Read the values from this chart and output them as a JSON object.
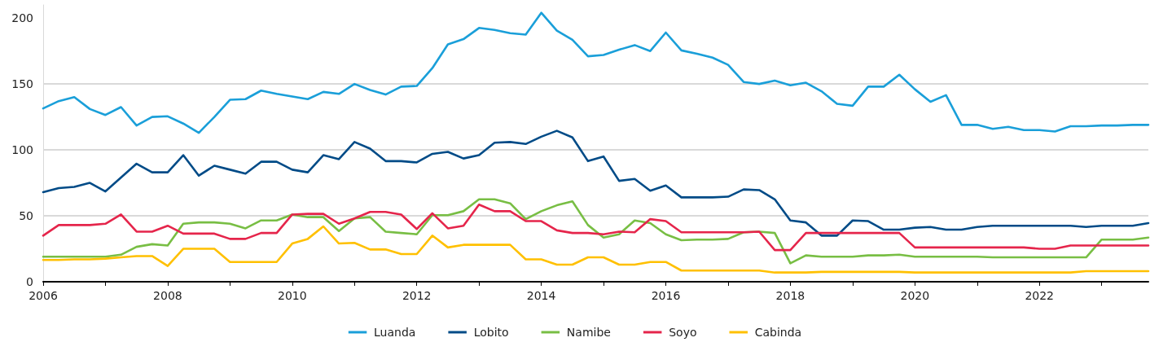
{
  "chart_data": {
    "type": "line",
    "x": [
      2006,
      2006.25,
      2006.5,
      2006.75,
      2007,
      2007.25,
      2007.5,
      2007.75,
      2008,
      2008.25,
      2008.5,
      2008.75,
      2009,
      2009.25,
      2009.5,
      2009.75,
      2010,
      2010.25,
      2010.5,
      2010.75,
      2011,
      2011.25,
      2011.5,
      2011.75,
      2012,
      2012.25,
      2012.5,
      2012.75,
      2013,
      2013.25,
      2013.5,
      2013.75,
      2014,
      2014.25,
      2014.5,
      2014.75,
      2015,
      2015.25,
      2015.5,
      2015.75,
      2016,
      2016.25,
      2016.5,
      2016.75,
      2017,
      2017.25,
      2017.5,
      2017.75,
      2018,
      2018.25,
      2018.5,
      2018.75,
      2019,
      2019.25,
      2019.5,
      2019.75,
      2020,
      2020.25,
      2020.5,
      2020.75,
      2021,
      2021.25,
      2021.5,
      2021.75,
      2022,
      2022.25,
      2022.5,
      2022.75,
      2023,
      2023.25,
      2023.5,
      2023.75
    ],
    "series": [
      {
        "name": "Luanda",
        "color": "#1a9fd9",
        "values": [
          131.5,
          137,
          140,
          131,
          126.5,
          132.5,
          118.5,
          125,
          125.5,
          120,
          113,
          125,
          138,
          138.5,
          145,
          142.5,
          140.5,
          138.5,
          144,
          142.5,
          150,
          145.5,
          142,
          148,
          148.5,
          162,
          180,
          184,
          192.5,
          191,
          188.5,
          187.5,
          204,
          190.5,
          183.5,
          171,
          172,
          176,
          179.5,
          175,
          189,
          175.5,
          173,
          170,
          164.5,
          151.5,
          150,
          152.5,
          149,
          151,
          144.5,
          135,
          133.5,
          148,
          148,
          157,
          146,
          136.5,
          141.5,
          119,
          119,
          116,
          117.5,
          115,
          115,
          114,
          118,
          118,
          118.5,
          118.5,
          119,
          119
        ]
      },
      {
        "name": "Lobito",
        "color": "#004b87",
        "values": [
          68,
          71,
          72,
          75,
          68.5,
          79,
          89.5,
          83,
          83,
          96,
          80.5,
          88,
          85,
          82,
          91,
          91,
          85,
          83,
          96,
          93,
          106,
          101,
          91.5,
          91.5,
          90.5,
          97,
          98.5,
          93.5,
          96,
          105.5,
          106,
          104.5,
          110,
          114.5,
          109.5,
          91.5,
          95,
          76.5,
          78,
          69,
          73,
          64,
          64,
          64,
          64.5,
          70,
          69.5,
          62.5,
          46.5,
          45,
          35,
          35,
          46.5,
          46,
          39.5,
          39.5,
          41,
          41.5,
          39.5,
          39.5,
          41.5,
          42.5,
          42.5,
          42.5,
          42.5,
          42.5,
          42.5,
          41.5,
          42.5,
          42.5,
          42.5,
          44.5
        ]
      },
      {
        "name": "Namibe",
        "color": "#78be44",
        "values": [
          19,
          19,
          19,
          19,
          19,
          20.5,
          26.5,
          28.5,
          27.5,
          44,
          45,
          45,
          44,
          40.5,
          46.5,
          46.5,
          51,
          49,
          49,
          38.5,
          48,
          49,
          38,
          37,
          36,
          50.5,
          50.5,
          53.5,
          62.5,
          62.5,
          59.5,
          47.5,
          53.5,
          58,
          61,
          43,
          33.5,
          36,
          46.5,
          44.5,
          36,
          31.5,
          32,
          32,
          32.5,
          37.5,
          38,
          37,
          14,
          20,
          19,
          19,
          19,
          20,
          20,
          20.5,
          19,
          19,
          19,
          19,
          19,
          18.5,
          18.5,
          18.5,
          18.5,
          18.5,
          18.5,
          18.5,
          32,
          32,
          32,
          33.5
        ]
      },
      {
        "name": "Soyo",
        "color": "#e5254b",
        "values": [
          35,
          43,
          43,
          43,
          44,
          51,
          38,
          38,
          42.5,
          36.5,
          36.5,
          36.5,
          32.5,
          32.5,
          37,
          37,
          51,
          51.5,
          51.5,
          44,
          48,
          53,
          53,
          51,
          40,
          52,
          40.5,
          42.5,
          58.5,
          53.5,
          53.5,
          46,
          46,
          39,
          37,
          37,
          36,
          38,
          37.5,
          47.5,
          46,
          37.5,
          37.5,
          37.5,
          37.5,
          37.5,
          38,
          24,
          24,
          37,
          37,
          37,
          37,
          37,
          37,
          37,
          26,
          26,
          26,
          26,
          26,
          26,
          26,
          26,
          25,
          25,
          27.5,
          27.5,
          27.5,
          27.5,
          27.5,
          27.5
        ]
      },
      {
        "name": "Cabinda",
        "color": "#ffc000",
        "values": [
          16.5,
          16.5,
          17,
          17,
          17.5,
          18.5,
          19.5,
          19.5,
          12,
          25,
          25,
          25,
          15,
          15,
          15,
          15,
          29,
          32.5,
          42,
          29,
          29.5,
          24.5,
          24.5,
          21,
          21,
          35,
          26,
          28,
          28,
          28,
          28,
          17,
          17,
          13,
          13,
          18.5,
          18.5,
          13,
          13,
          15,
          15,
          8.5,
          8.5,
          8.5,
          8.5,
          8.5,
          8.5,
          7,
          7,
          7,
          7.5,
          7.5,
          7.5,
          7.5,
          7.5,
          7.5,
          7,
          7,
          7,
          7,
          7,
          7,
          7,
          7,
          7,
          7,
          7,
          8,
          8,
          8,
          8,
          8
        ]
      }
    ],
    "xlim": [
      2006,
      2023.75
    ],
    "xticks": [
      2006,
      {
        "value": 2007,
        "label": null
      },
      2008,
      {
        "value": 2009,
        "label": null
      },
      2010,
      {
        "value": 2011,
        "label": null
      },
      2012,
      {
        "value": 2013,
        "label": null
      },
      2014,
      {
        "value": 2015,
        "label": null
      },
      2016,
      {
        "value": 2017,
        "label": null
      },
      2018,
      {
        "value": 2019,
        "label": null
      },
      2020,
      {
        "value": 2021,
        "label": null
      },
      2022,
      {
        "value": 2023,
        "label": null
      }
    ],
    "ylim": [
      0,
      210
    ],
    "yticks": [
      0,
      50,
      100,
      150,
      200
    ],
    "grid": "y",
    "legend": "bottom",
    "marker": "none",
    "line_style": "solid"
  }
}
